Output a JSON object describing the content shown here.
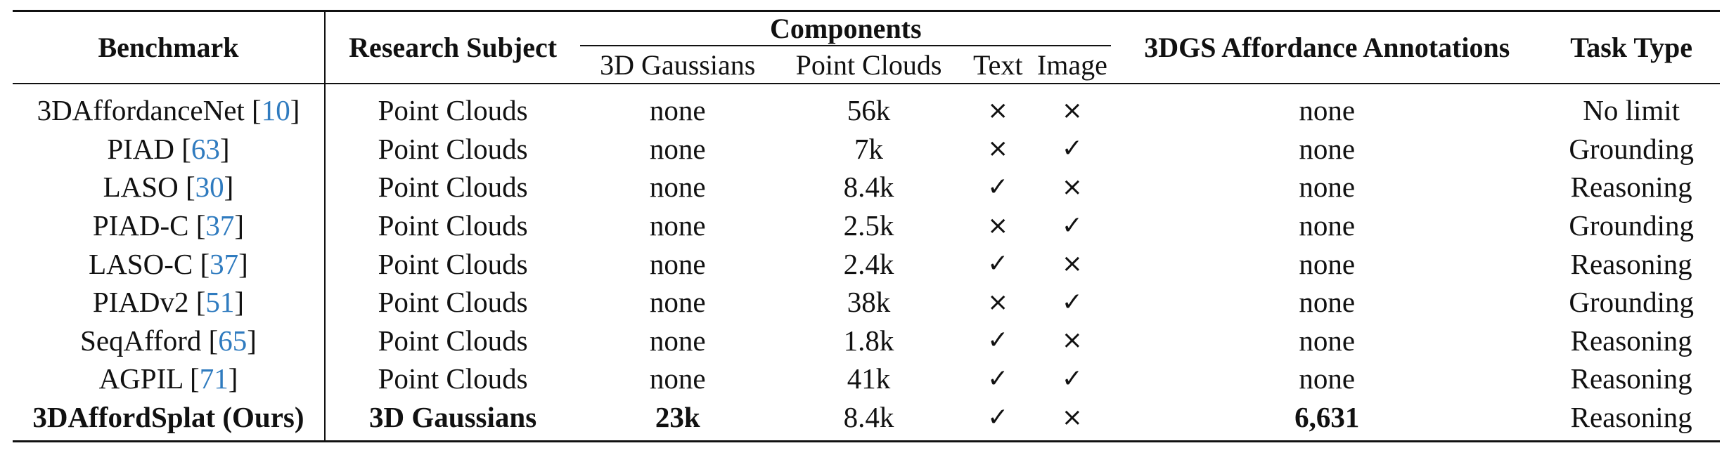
{
  "headers": {
    "benchmark": "Benchmark",
    "research_subject": "Research Subject",
    "components": "Components",
    "gaussians": "3D Gaussians",
    "point_clouds": "Point Clouds",
    "text": "Text",
    "image": "Image",
    "annotations": "3DGS Affordance Annotations",
    "task_type": "Task Type"
  },
  "rows": [
    {
      "name": "3DAffordanceNet [",
      "cite": "10",
      "close": "]",
      "subject": "Point Clouds",
      "gaussians": "none",
      "point_clouds": "56k",
      "text": "×",
      "image": "×",
      "annotations": "none",
      "task": "No limit"
    },
    {
      "name": "PIAD [",
      "cite": "63",
      "close": "]",
      "subject": "Point Clouds",
      "gaussians": "none",
      "point_clouds": "7k",
      "text": "×",
      "image": "✓",
      "annotations": "none",
      "task": "Grounding"
    },
    {
      "name": "LASO [",
      "cite": "30",
      "close": "]",
      "subject": "Point Clouds",
      "gaussians": "none",
      "point_clouds": "8.4k",
      "text": "✓",
      "image": "×",
      "annotations": "none",
      "task": "Reasoning"
    },
    {
      "name": "PIAD-C [",
      "cite": "37",
      "close": "]",
      "subject": "Point Clouds",
      "gaussians": "none",
      "point_clouds": "2.5k",
      "text": "×",
      "image": "✓",
      "annotations": "none",
      "task": "Grounding"
    },
    {
      "name": "LASO-C [",
      "cite": "37",
      "close": "]",
      "subject": "Point Clouds",
      "gaussians": "none",
      "point_clouds": "2.4k",
      "text": "✓",
      "image": "×",
      "annotations": "none",
      "task": "Reasoning"
    },
    {
      "name": "PIADv2 [",
      "cite": "51",
      "close": "]",
      "subject": "Point Clouds",
      "gaussians": "none",
      "point_clouds": "38k",
      "text": "×",
      "image": "✓",
      "annotations": "none",
      "task": "Grounding"
    },
    {
      "name": "SeqAfford [",
      "cite": "65",
      "close": "]",
      "subject": "Point Clouds",
      "gaussians": "none",
      "point_clouds": "1.8k",
      "text": "✓",
      "image": "×",
      "annotations": "none",
      "task": "Reasoning"
    },
    {
      "name": "AGPIL [",
      "cite": "71",
      "close": "]",
      "subject": "Point Clouds",
      "gaussians": "none",
      "point_clouds": "41k",
      "text": "✓",
      "image": "✓",
      "annotations": "none",
      "task": "Reasoning"
    }
  ],
  "ours": {
    "name": "3DAffordSplat (Ours)",
    "subject": "3D Gaussians",
    "gaussians": "23k",
    "point_clouds": "8.4k",
    "text": "✓",
    "image": "×",
    "annotations": "6,631",
    "task": "Reasoning"
  }
}
